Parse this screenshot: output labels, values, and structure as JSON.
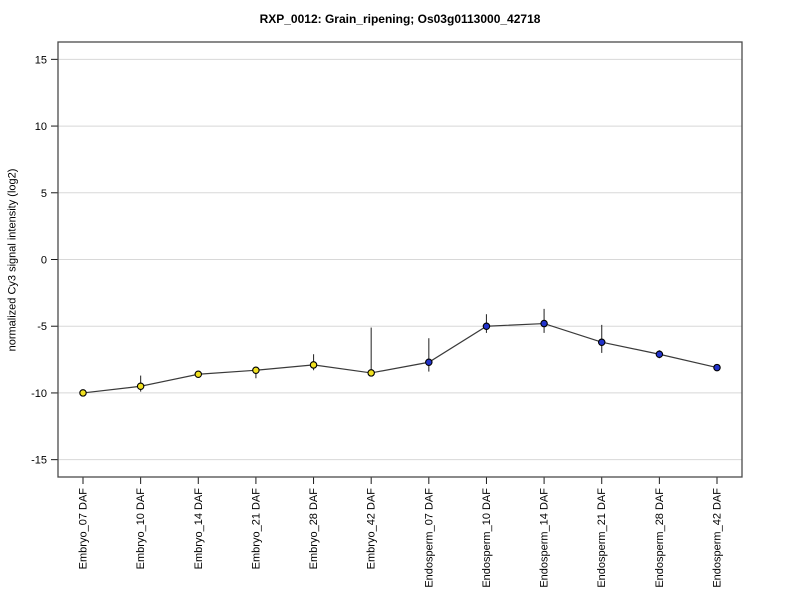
{
  "chart_data": {
    "type": "line",
    "title": "RXP_0012: Grain_ripening; Os03g0113000_42718",
    "xlabel": "",
    "ylabel": "normalized Cy3 signal intensity (log2)",
    "ylim": [
      -16.3,
      16.3
    ],
    "yticks": [
      15,
      10,
      5,
      0,
      -5,
      -10,
      -15
    ],
    "grid": true,
    "legend": "none",
    "categories": [
      "Embryo_07 DAF",
      "Embryo_10 DAF",
      "Embryo_14 DAF",
      "Embryo_21 DAF",
      "Embryo_28 DAF",
      "Embryo_42 DAF",
      "Endosperm_07 DAF",
      "Endosperm_10 DAF",
      "Endosperm_14 DAF",
      "Endosperm_21 DAF",
      "Endosperm_28 DAF",
      "Endosperm_42 DAF"
    ],
    "series": [
      {
        "name": "normalized Cy3 signal intensity",
        "values": [
          -10.0,
          -9.5,
          -8.6,
          -8.3,
          -7.9,
          -8.5,
          -7.7,
          -5.0,
          -4.8,
          -6.2,
          -7.1,
          -8.1
        ],
        "error_low": [
          -10.0,
          -9.9,
          -8.8,
          -8.9,
          -8.3,
          -8.6,
          -8.4,
          -5.5,
          -5.5,
          -7.0,
          -7.4,
          -8.1
        ],
        "error_high": [
          -10.0,
          -8.7,
          -8.4,
          -8.1,
          -7.1,
          -5.1,
          -5.9,
          -4.1,
          -3.7,
          -4.9,
          -6.8,
          -8.1
        ]
      }
    ],
    "point_groups": [
      "Embryo",
      "Embryo",
      "Embryo",
      "Embryo",
      "Embryo",
      "Embryo",
      "Endosperm",
      "Endosperm",
      "Endosperm",
      "Endosperm",
      "Endosperm",
      "Endosperm"
    ],
    "groups": [
      {
        "name": "Embryo",
        "marker_color": "#f0e020"
      },
      {
        "name": "Endosperm",
        "marker_color": "#2233cc"
      }
    ]
  },
  "styles": {
    "background": "#ffffff",
    "grid_color": "#d8d8d8",
    "box_color": "#4a4a4a",
    "axis_color": "#1a1a1a",
    "text_color": "#000000",
    "line_color": "#3a3a3a",
    "errorbar_color": "#333333",
    "marker_stroke": "#000000"
  }
}
